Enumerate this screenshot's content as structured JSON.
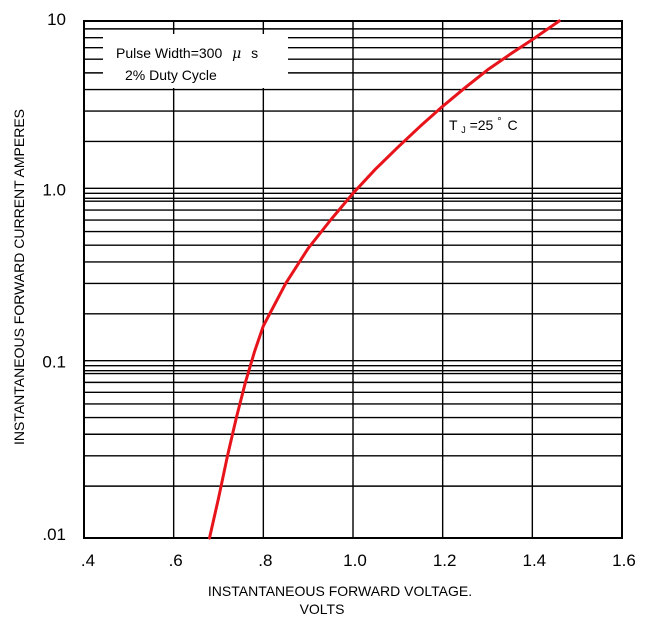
{
  "chart_data": {
    "type": "line",
    "xlabel_line1": "INSTANTANEOUS FORWARD VOLTAGE.",
    "xlabel_line2": "VOLTS",
    "ylabel": "INSTANTANEOUS FORWARD CURRENT AMPERES",
    "xlim": [
      0.4,
      1.6
    ],
    "ylim": [
      0.01,
      10
    ],
    "yscale": "log",
    "x_ticks": [
      0.4,
      0.6,
      0.8,
      1.0,
      1.2,
      1.4,
      1.6
    ],
    "x_tick_labels": [
      ".4",
      ".6",
      ".8",
      "1.0",
      "1.2",
      "1.4",
      "1.6"
    ],
    "y_ticks": [
      0.01,
      0.1,
      1.0,
      10
    ],
    "y_tick_labels": [
      ".01",
      "0.1",
      "1.0",
      "10"
    ],
    "grid": true,
    "annotations": {
      "box_line1": "Pulse Width=300",
      "box_mu": "μ",
      "box_s": "s",
      "box_line2": "2% Duty Cycle",
      "temp_prefix": "T",
      "temp_sub": "J",
      "temp_value": "=25",
      "temp_deg": "°",
      "temp_unit": "C"
    },
    "series": [
      {
        "color": "#e8141b",
        "x": [
          0.68,
          0.7,
          0.72,
          0.74,
          0.76,
          0.78,
          0.8,
          0.85,
          0.9,
          0.95,
          1.0,
          1.05,
          1.1,
          1.15,
          1.2,
          1.25,
          1.3,
          1.35,
          1.4,
          1.46
        ],
        "y": [
          0.01,
          0.017,
          0.03,
          0.05,
          0.08,
          0.12,
          0.17,
          0.3,
          0.48,
          0.7,
          1.0,
          1.38,
          1.85,
          2.45,
          3.2,
          4.1,
          5.2,
          6.4,
          7.8,
          10.0
        ]
      }
    ]
  }
}
